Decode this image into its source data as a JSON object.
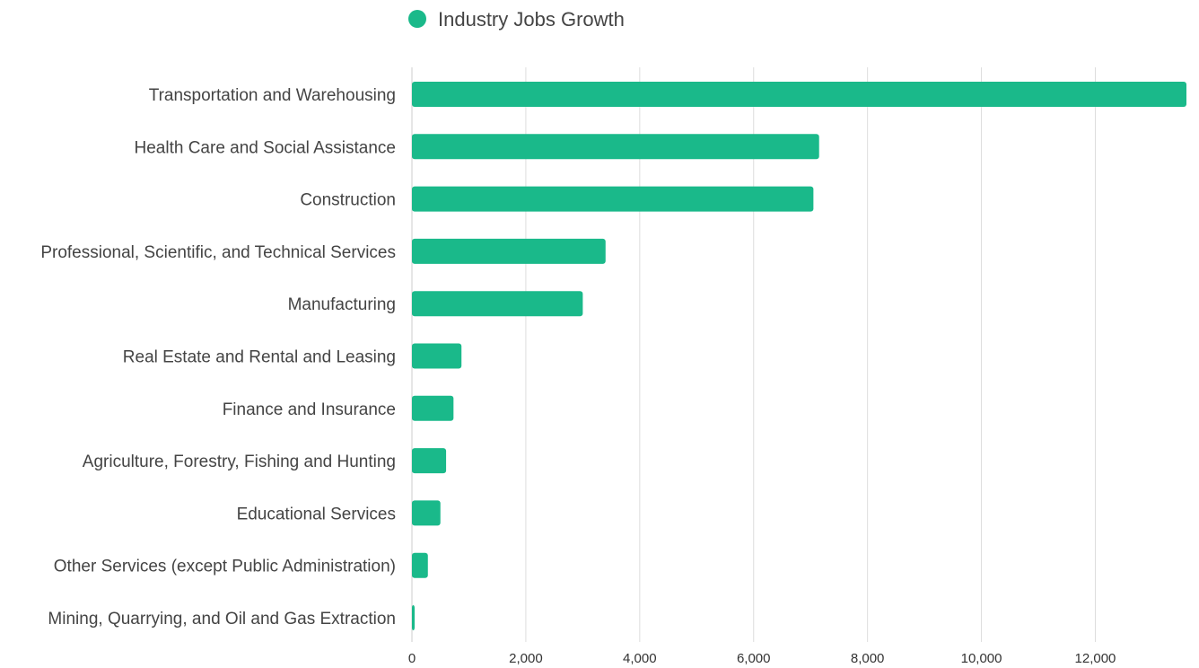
{
  "chart_data": {
    "type": "bar",
    "orientation": "horizontal",
    "legend": {
      "position": "top",
      "entries": [
        "Industry Jobs Growth"
      ]
    },
    "series": [
      {
        "name": "Industry Jobs Growth",
        "color": "#1ab98a",
        "values": [
          13600,
          7150,
          7050,
          3400,
          3000,
          870,
          730,
          600,
          500,
          280,
          40
        ]
      }
    ],
    "categories": [
      "Transportation and Warehousing",
      "Health Care and Social Assistance",
      "Construction",
      "Professional, Scientific, and Technical Services",
      "Manufacturing",
      "Real Estate and Rental and Leasing",
      "Finance and Insurance",
      "Agriculture, Forestry, Fishing and Hunting",
      "Educational Services",
      "Other Services (except Public Administration)",
      "Mining, Quarrying, and Oil and Gas Extraction"
    ],
    "xlim": [
      0,
      13600
    ],
    "xticks": [
      0,
      2000,
      4000,
      6000,
      8000,
      10000,
      12000
    ],
    "xtick_labels": [
      "0",
      "2,000",
      "4,000",
      "6,000",
      "8,000",
      "10,000",
      "12,000"
    ],
    "grid": "vertical"
  }
}
